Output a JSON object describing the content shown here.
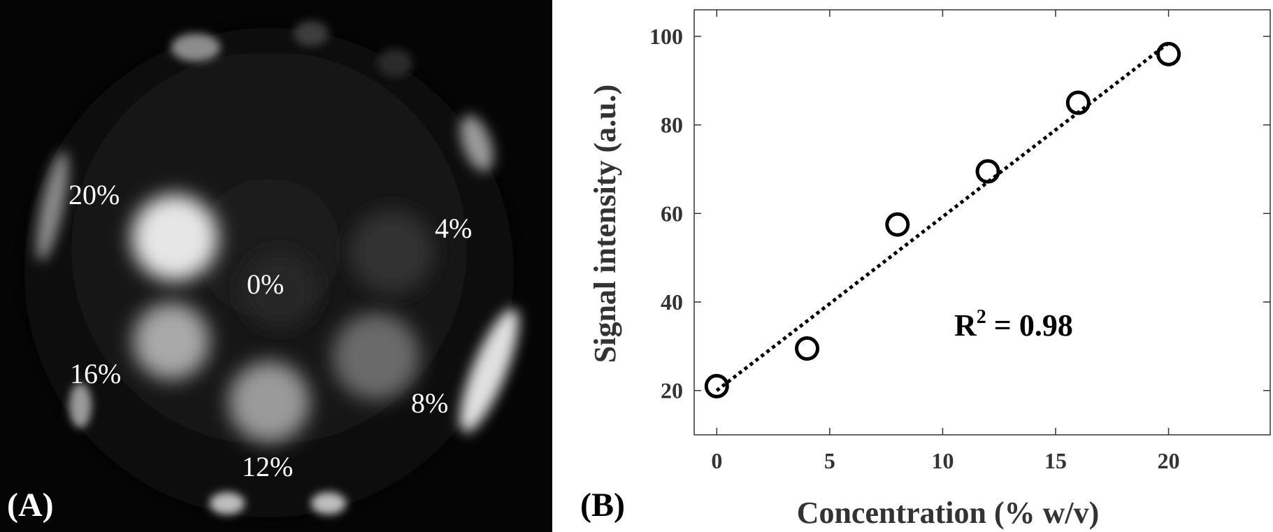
{
  "panel_a": {
    "letter": "(A)",
    "sample_labels": [
      "20%",
      "4%",
      "0%",
      "16%",
      "8%",
      "12%"
    ]
  },
  "panel_b": {
    "letter": "(B)",
    "annotation": {
      "prefix": "R",
      "sup": "2",
      "suffix": " = 0.98"
    }
  },
  "chart_data": {
    "type": "scatter",
    "title": "",
    "xlabel": "Concentration (% w/v)",
    "ylabel": "Signal intensity (a.u.)",
    "xlim": [
      -1,
      24.5
    ],
    "ylim": [
      10,
      106
    ],
    "xticks": [
      0,
      5,
      10,
      15,
      20
    ],
    "yticks": [
      20,
      40,
      60,
      80,
      100
    ],
    "grid": false,
    "series": [
      {
        "x": [
          0,
          4,
          8,
          12,
          16,
          20
        ],
        "y": [
          21,
          29.5,
          57.5,
          69.5,
          85,
          96
        ],
        "marker": "open-circle",
        "color": "#000000"
      }
    ],
    "fit_line": {
      "x": [
        0,
        20
      ],
      "y": [
        20,
        98.5
      ],
      "style": "dotted",
      "color": "#000000"
    },
    "r_squared": 0.98
  }
}
